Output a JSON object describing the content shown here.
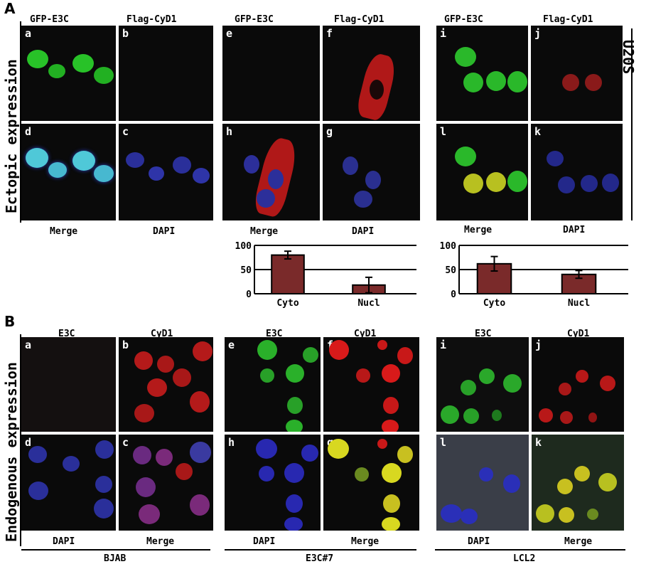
{
  "sectionA": {
    "letter": "A",
    "side_label": "Ectopic expression",
    "right_label": "U20S",
    "groups": [
      {
        "top_left": "GFP-E3C",
        "top_right": "Flag-CyD1",
        "bottom_left": "Merge",
        "bottom_right": "DAPI",
        "panels": [
          "a",
          "b",
          "d",
          "c"
        ]
      },
      {
        "top_left": "GFP-E3C",
        "top_right": "Flag-CyD1",
        "bottom_left": "Merge",
        "bottom_right": "DAPI",
        "panels": [
          "e",
          "f",
          "h",
          "g"
        ]
      },
      {
        "top_left": "GFP-E3C",
        "top_right": "Flag-CyD1",
        "bottom_left": "Merge",
        "bottom_right": "DAPI",
        "panels": [
          "i",
          "j",
          "l",
          "k"
        ]
      }
    ]
  },
  "sectionB": {
    "letter": "B",
    "side_label": "Endogenous expression",
    "groups": [
      {
        "top_left": "E3C",
        "top_right": "CyD1",
        "bottom_left": "DAPI",
        "bottom_right": "Merge",
        "cell_line": "BJAB",
        "panels": [
          "a",
          "b",
          "d",
          "c"
        ]
      },
      {
        "top_left": "E3C",
        "top_right": "CyD1",
        "bottom_left": "DAPI",
        "bottom_right": "Merge",
        "cell_line": "E3C#7",
        "panels": [
          "e",
          "f",
          "h",
          "g"
        ]
      },
      {
        "top_left": "E3C",
        "top_right": "CyD1",
        "bottom_left": "DAPI",
        "bottom_right": "Merge",
        "cell_line": "LCL2",
        "panels": [
          "i",
          "j",
          "l",
          "k"
        ]
      }
    ]
  },
  "chart_data": [
    {
      "type": "bar",
      "categories": [
        "Cyto",
        "Nucl"
      ],
      "values": [
        80,
        18
      ],
      "errors": [
        8,
        16
      ],
      "ylim": [
        0,
        100
      ],
      "yticks": [
        "0",
        "50",
        "100"
      ],
      "gridlines": [
        50,
        100
      ],
      "bar_color": "#7a2a2a"
    },
    {
      "type": "bar",
      "categories": [
        "Cyto",
        "Nucl"
      ],
      "values": [
        62,
        40
      ],
      "errors": [
        15,
        8
      ],
      "ylim": [
        0,
        100
      ],
      "yticks": [
        "0",
        "50",
        "100"
      ],
      "gridlines": [
        50,
        100
      ],
      "bar_color": "#7a2a2a"
    }
  ]
}
